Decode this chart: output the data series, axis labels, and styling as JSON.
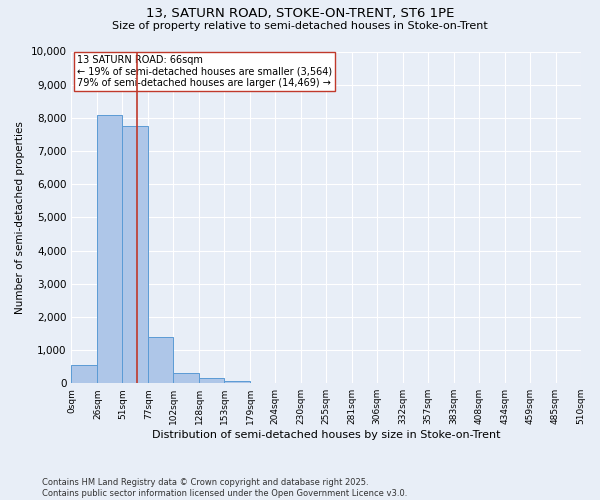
{
  "title_line1": "13, SATURN ROAD, STOKE-ON-TRENT, ST6 1PE",
  "title_line2": "Size of property relative to semi-detached houses in Stoke-on-Trent",
  "xlabel": "Distribution of semi-detached houses by size in Stoke-on-Trent",
  "ylabel": "Number of semi-detached properties",
  "annotation_title": "13 SATURN ROAD: 66sqm",
  "annotation_line2": "← 19% of semi-detached houses are smaller (3,564)",
  "annotation_line3": "79% of semi-detached houses are larger (14,469) →",
  "bin_labels": [
    "0sqm",
    "26sqm",
    "51sqm",
    "77sqm",
    "102sqm",
    "128sqm",
    "153sqm",
    "179sqm",
    "204sqm",
    "230sqm",
    "255sqm",
    "281sqm",
    "306sqm",
    "332sqm",
    "357sqm",
    "383sqm",
    "408sqm",
    "434sqm",
    "459sqm",
    "485sqm",
    "510sqm"
  ],
  "bar_values": [
    550,
    8100,
    7750,
    1400,
    300,
    150,
    80,
    0,
    0,
    0,
    0,
    0,
    0,
    0,
    0,
    0,
    0,
    0,
    0,
    0
  ],
  "bar_color": "#aec6e8",
  "bar_edge_color": "#5b9bd5",
  "property_line_x": 66,
  "property_line_color": "#c0392b",
  "ylim": [
    0,
    10000
  ],
  "yticks": [
    0,
    1000,
    2000,
    3000,
    4000,
    5000,
    6000,
    7000,
    8000,
    9000,
    10000
  ],
  "background_color": "#e8eef7",
  "grid_color": "#ffffff",
  "footnote_line1": "Contains HM Land Registry data © Crown copyright and database right 2025.",
  "footnote_line2": "Contains public sector information licensed under the Open Government Licence v3.0.",
  "bin_edges": [
    0,
    26,
    51,
    77,
    102,
    128,
    153,
    179,
    204,
    230,
    255,
    281,
    306,
    332,
    357,
    383,
    408,
    434,
    459,
    485,
    510
  ]
}
